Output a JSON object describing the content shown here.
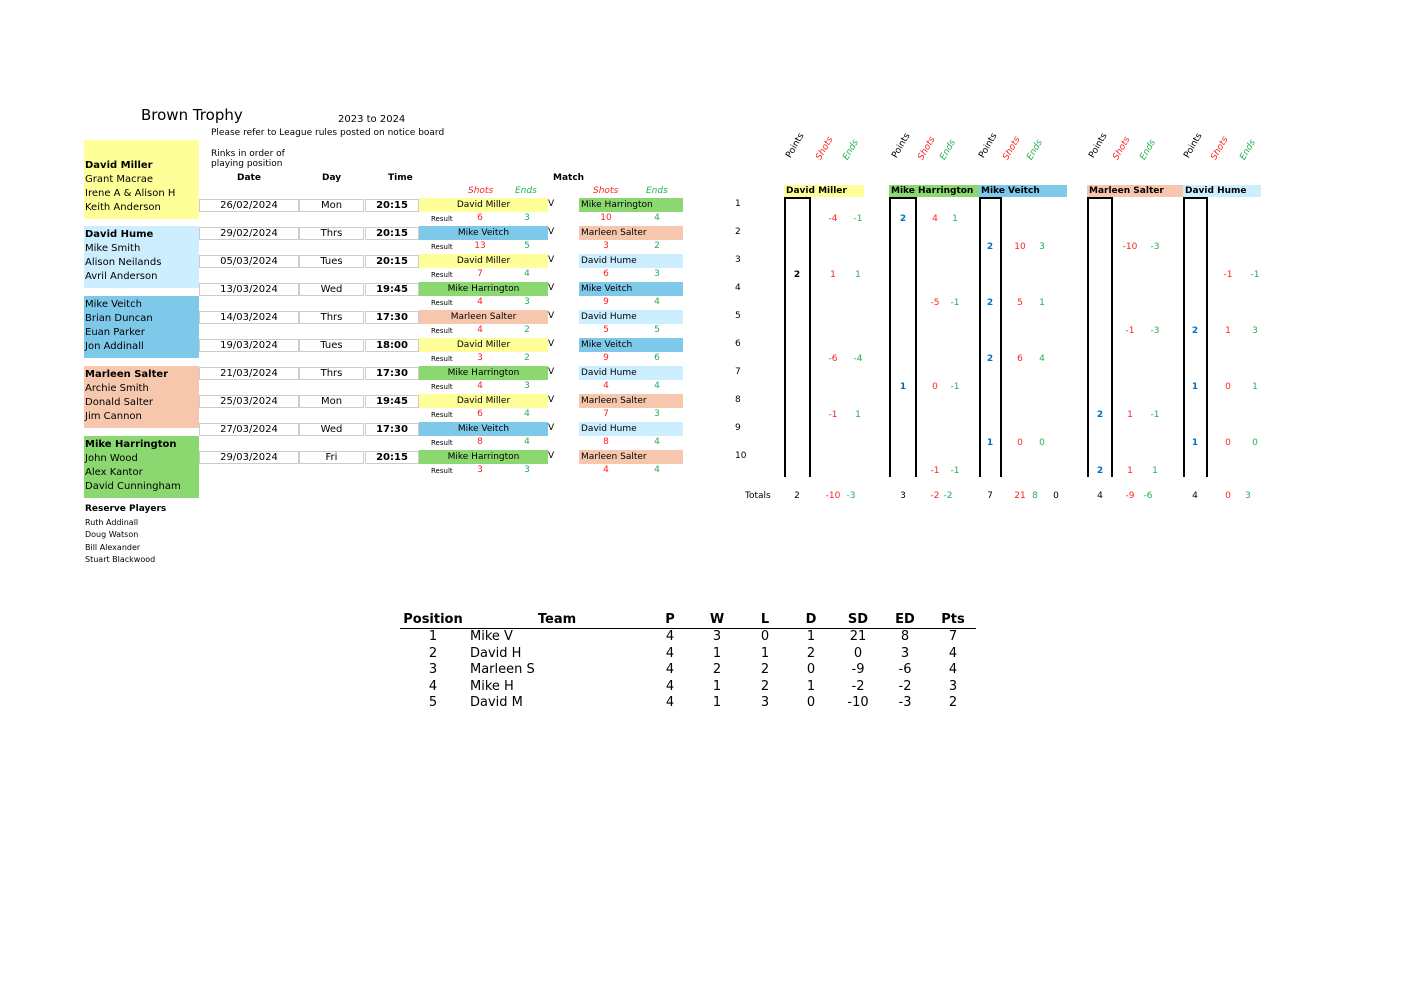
{
  "title": "Brown Trophy",
  "season": "2023 to 2024",
  "notice": "Please refer to League rules posted on notice board",
  "rinks_note_1": "Rinks in order of",
  "rinks_note_2": "playing position",
  "colors": {
    "David Miller": "#ffff99",
    "David Hume": "#cceeff",
    "Mike Veitch": "#7ec8ea",
    "Marleen Salter": "#f6c6ad",
    "Mike Harrington": "#8cd870"
  },
  "headers": {
    "date": "Date",
    "day": "Day",
    "time": "Time",
    "match": "Match",
    "shots": "Shots",
    "ends": "Ends",
    "result": "Result",
    "v": "V",
    "totals": "Totals",
    "points": "Points"
  },
  "teams": [
    {
      "captain": "David Miller",
      "members": [
        "Grant Macrae",
        "Irene A & Alison H",
        "Keith Anderson"
      ]
    },
    {
      "captain": "David Hume",
      "members": [
        "Mike Smith",
        "Alison Neilands",
        "Avril Anderson"
      ]
    },
    {
      "captain": "",
      "members": [
        "Mike Veitch",
        "Brian Duncan",
        "Euan Parker",
        "Jon Addinall"
      ]
    },
    {
      "captain": "Marleen Salter",
      "members": [
        "Archie Smith",
        "Donald Salter",
        "Jim Cannon"
      ]
    },
    {
      "captain": "Mike Harrington",
      "members": [
        "John Wood",
        "Alex Kantor",
        "David Cunningham"
      ]
    }
  ],
  "reserve": {
    "title": "Reserve Players",
    "players": [
      "Ruth Addinall",
      "Doug Watson",
      "Bill Alexander",
      "Stuart Blackwood"
    ]
  },
  "fixtures": [
    {
      "n": "1",
      "date": "26/02/2024",
      "day": "Mon",
      "time": "20:15",
      "home": "David Miller",
      "away": "Mike Harrington",
      "hs": "6",
      "he": "3",
      "as": "10",
      "ae": "4"
    },
    {
      "n": "2",
      "date": "29/02/2024",
      "day": "Thrs",
      "time": "20:15",
      "home": "Mike Veitch",
      "away": "Marleen Salter",
      "hs": "13",
      "he": "5",
      "as": "3",
      "ae": "2"
    },
    {
      "n": "3",
      "date": "05/03/2024",
      "day": "Tues",
      "time": "20:15",
      "home": "David Miller",
      "away": "David Hume",
      "hs": "7",
      "he": "4",
      "as": "6",
      "ae": "3"
    },
    {
      "n": "4",
      "date": "13/03/2024",
      "day": "Wed",
      "time": "19:45",
      "home": "Mike Harrington",
      "away": "Mike Veitch",
      "hs": "4",
      "he": "3",
      "as": "9",
      "ae": "4"
    },
    {
      "n": "5",
      "date": "14/03/2024",
      "day": "Thrs",
      "time": "17:30",
      "home": "Marleen Salter",
      "away": "David Hume",
      "hs": "4",
      "he": "2",
      "as": "5",
      "ae": "5"
    },
    {
      "n": "6",
      "date": "19/03/2024",
      "day": "Tues",
      "time": "18:00",
      "home": "David Miller",
      "away": "Mike Veitch",
      "hs": "3",
      "he": "2",
      "as": "9",
      "ae": "6"
    },
    {
      "n": "7",
      "date": "21/03/2024",
      "day": "Thrs",
      "time": "17:30",
      "home": "Mike Harrington",
      "away": "David Hume",
      "hs": "4",
      "he": "3",
      "as": "4",
      "ae": "4"
    },
    {
      "n": "8",
      "date": "25/03/2024",
      "day": "Mon",
      "time": "19:45",
      "home": "David Miller",
      "away": "Marleen Salter",
      "hs": "6",
      "he": "4",
      "as": "7",
      "ae": "3"
    },
    {
      "n": "9",
      "date": "27/03/2024",
      "day": "Wed",
      "time": "17:30",
      "home": "Mike Veitch",
      "away": "David Hume",
      "hs": "8",
      "he": "4",
      "as": "8",
      "ae": "4"
    },
    {
      "n": "10",
      "date": "29/03/2024",
      "day": "Fri",
      "time": "20:15",
      "home": "Mike Harrington",
      "away": "Marleen Salter",
      "hs": "3",
      "he": "3",
      "as": "4",
      "ae": "4"
    }
  ],
  "grid": [
    {
      "team": "David Miller",
      "rows": {
        "1": [
          "",
          "-4",
          "-1"
        ],
        "3": [
          "2",
          "1",
          "1"
        ],
        "6": [
          "",
          "-6",
          "-4"
        ],
        "8": [
          "",
          "-1",
          "1"
        ]
      },
      "totals": [
        "2",
        "-10",
        "-3"
      ]
    },
    {
      "team": "Mike Harrington",
      "rows": {
        "1": [
          "2",
          "4",
          "1"
        ],
        "4": [
          "",
          "-5",
          "-1"
        ],
        "7": [
          "1",
          "0",
          "-1"
        ],
        "10": [
          "",
          "-1",
          "-1"
        ]
      },
      "totals": [
        "3",
        "-2",
        "-2"
      ]
    },
    {
      "team": "Mike Veitch",
      "rows": {
        "2": [
          "2",
          "10",
          "3"
        ],
        "4": [
          "2",
          "5",
          "1"
        ],
        "6": [
          "2",
          "6",
          "4"
        ],
        "9": [
          "1",
          "0",
          "0"
        ]
      },
      "totals": [
        "7",
        "21",
        "8",
        "0"
      ]
    },
    {
      "team": "Marleen Salter",
      "rows": {
        "2": [
          "",
          "-10",
          "-3"
        ],
        "5": [
          "",
          "-1",
          "-3"
        ],
        "8": [
          "2",
          "1",
          "-1"
        ],
        "10": [
          "2",
          "1",
          "1"
        ]
      },
      "totals": [
        "4",
        "-9",
        "-6"
      ]
    },
    {
      "team": "David Hume",
      "rows": {
        "3": [
          "",
          "-1",
          "-1"
        ],
        "5": [
          "2",
          "1",
          "3"
        ],
        "7": [
          "1",
          "0",
          "1"
        ],
        "9": [
          "1",
          "0",
          "0"
        ]
      },
      "totals": [
        "4",
        "0",
        "3"
      ]
    }
  ],
  "standings": {
    "columns": [
      "Position",
      "Team",
      "P",
      "W",
      "L",
      "D",
      "SD",
      "ED",
      "Pts"
    ],
    "rows": [
      [
        "1",
        "Mike V",
        "4",
        "3",
        "0",
        "1",
        "21",
        "8",
        "7"
      ],
      [
        "2",
        "David H",
        "4",
        "1",
        "1",
        "2",
        "0",
        "3",
        "4"
      ],
      [
        "3",
        "Marleen S",
        "4",
        "2",
        "2",
        "0",
        "-9",
        "-6",
        "4"
      ],
      [
        "4",
        "Mike H",
        "4",
        "1",
        "2",
        "1",
        "-2",
        "-2",
        "3"
      ],
      [
        "5",
        "David M",
        "4",
        "1",
        "3",
        "0",
        "-10",
        "-3",
        "2"
      ]
    ]
  }
}
